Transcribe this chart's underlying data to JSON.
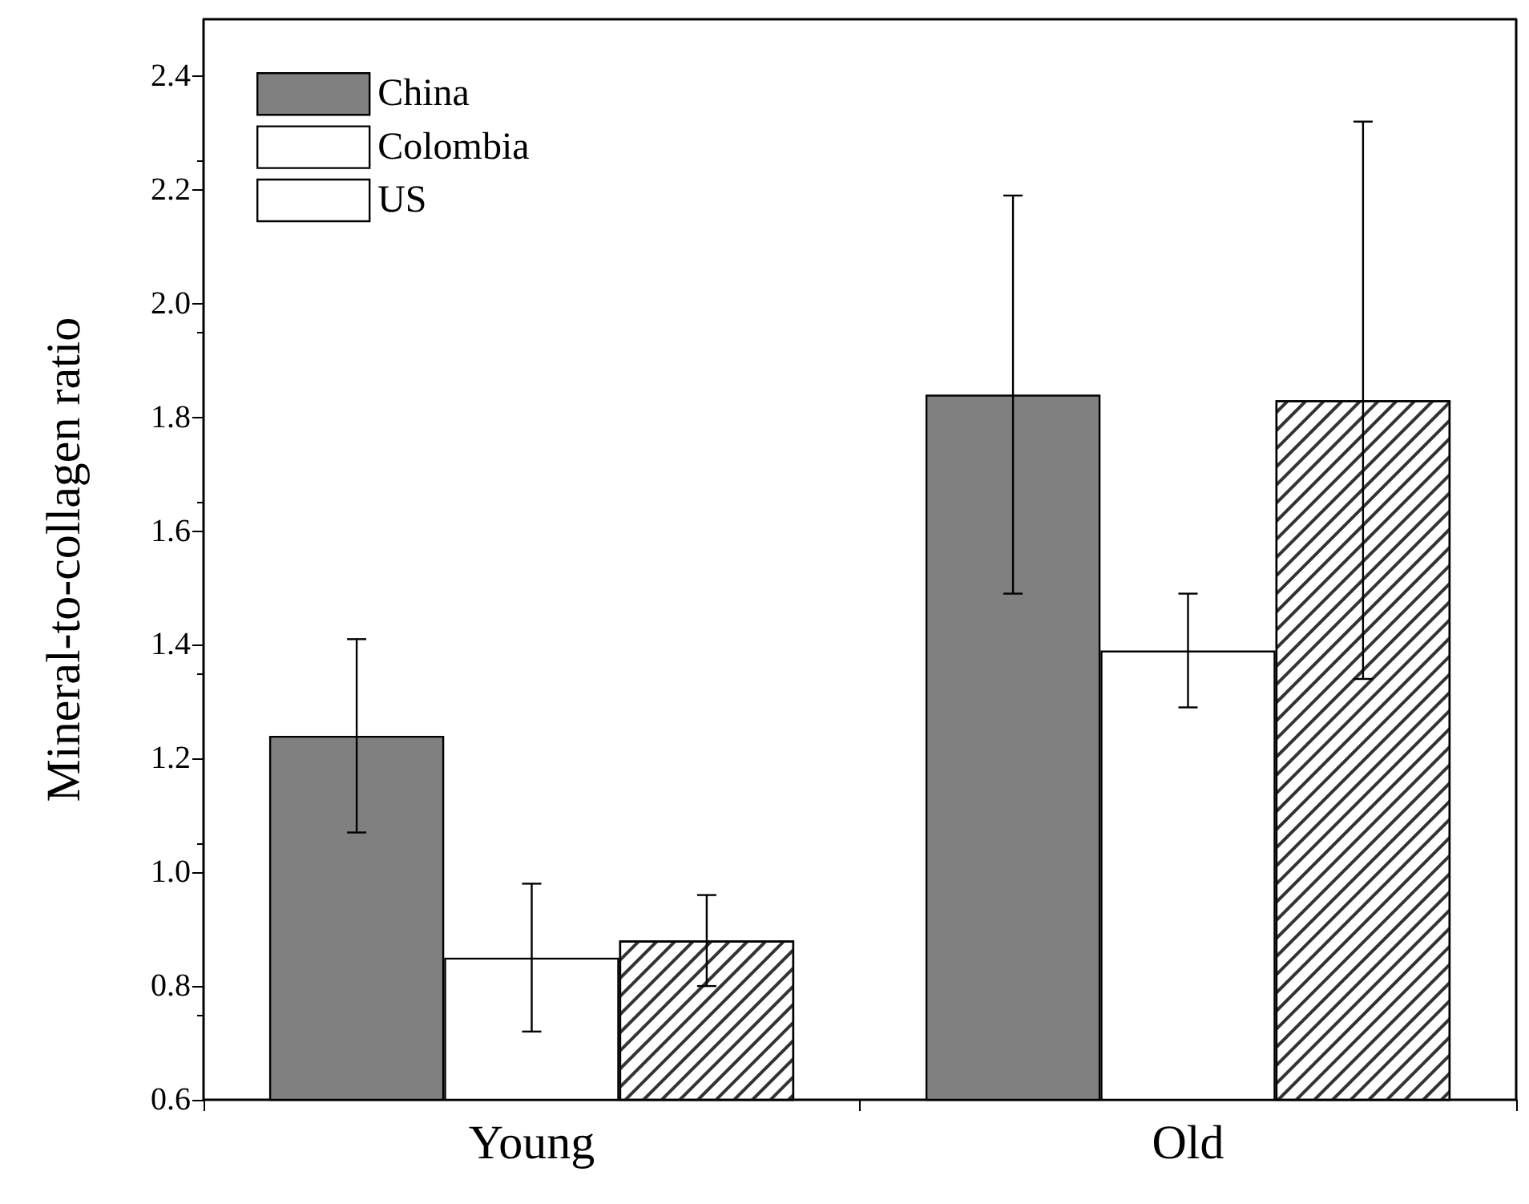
{
  "chart_data": {
    "type": "bar",
    "ylabel": "Mineral-to-collagen ratio",
    "categories": [
      "Young",
      "Old"
    ],
    "series": [
      {
        "name": "China",
        "color": "#808080",
        "values": [
          1.24,
          1.84
        ],
        "errors": [
          [
            1.07,
            1.41
          ],
          [
            1.49,
            2.19
          ]
        ]
      },
      {
        "name": "Colombia",
        "color": "#ffffff",
        "values": [
          0.85,
          1.39
        ],
        "errors": [
          [
            0.72,
            0.98
          ],
          [
            1.29,
            1.49
          ]
        ]
      },
      {
        "name": "US",
        "color": "#ffffff",
        "values": [
          0.88,
          1.83
        ],
        "errors": [
          [
            0.8,
            0.96
          ],
          [
            1.34,
            2.32
          ]
        ]
      }
    ],
    "ylim": [
      0.6,
      2.5
    ],
    "yticks": [
      0.6,
      0.8,
      {
        "value": 1,
        "label": "1.0"
      },
      1.2,
      1.4,
      1.6,
      1.8,
      {
        "value": 2,
        "label": "2.0"
      },
      2.2,
      2.4
    ],
    "grid": false,
    "legend": "top left"
  }
}
